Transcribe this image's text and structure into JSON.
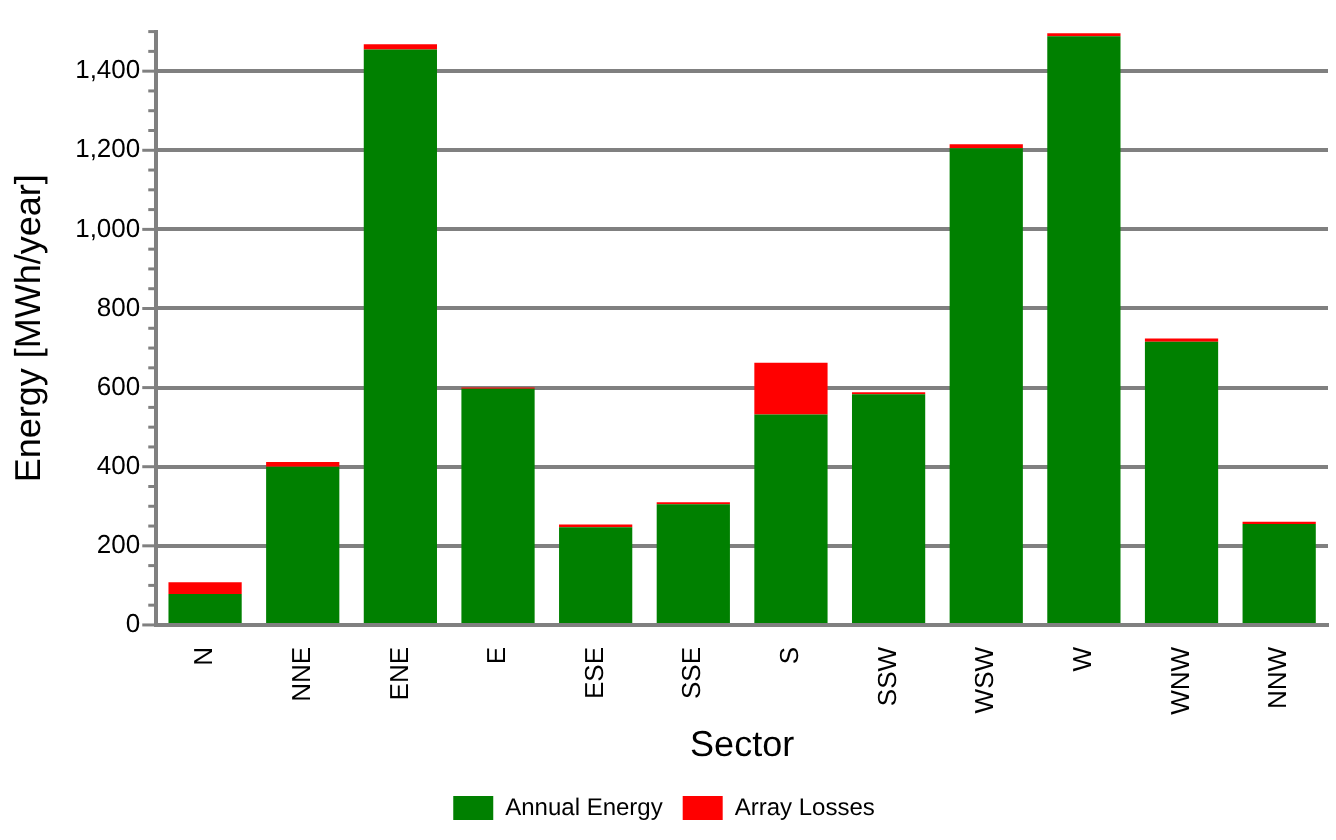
{
  "chart_data": {
    "type": "bar",
    "xlabel": "Sector",
    "ylabel": "Energy [MWh/year]",
    "stacked": true,
    "legend": "bottom",
    "grid": "y",
    "categories": [
      "N",
      "NNE",
      "ENE",
      "E",
      "ESE",
      "SSE",
      "S",
      "SSW",
      "WSW",
      "W",
      "WNW",
      "NNW"
    ],
    "series": [
      {
        "name": "Annual Energy",
        "color": "#008000",
        "values": [
          78,
          400,
          1455,
          597,
          247,
          305,
          532,
          583,
          1205,
          1488,
          716,
          255
        ]
      },
      {
        "name": "Array Losses",
        "color": "#ff0000",
        "values": [
          30,
          12,
          13,
          3,
          7,
          5,
          131,
          5,
          10,
          8,
          8,
          6
        ]
      }
    ],
    "ylim": [
      0,
      1500
    ],
    "yticks": [
      0,
      {
        "value": 50,
        "label": null
      },
      {
        "value": 100,
        "label": null
      },
      {
        "value": 150,
        "label": null
      },
      200,
      {
        "value": 250,
        "label": null
      },
      {
        "value": 300,
        "label": null
      },
      {
        "value": 350,
        "label": null
      },
      400,
      {
        "value": 450,
        "label": null
      },
      {
        "value": 500,
        "label": null
      },
      {
        "value": 550,
        "label": null
      },
      600,
      {
        "value": 650,
        "label": null
      },
      {
        "value": 700,
        "label": null
      },
      {
        "value": 750,
        "label": null
      },
      800,
      {
        "value": 850,
        "label": null
      },
      {
        "value": 900,
        "label": null
      },
      {
        "value": 950,
        "label": null
      },
      {
        "value": 1000,
        "label": "1,000"
      },
      {
        "value": 1050,
        "label": null
      },
      {
        "value": 1100,
        "label": null
      },
      {
        "value": 1150,
        "label": null
      },
      {
        "value": 1200,
        "label": "1,200"
      },
      {
        "value": 1250,
        "label": null
      },
      {
        "value": 1300,
        "label": null
      },
      {
        "value": 1350,
        "label": null
      },
      {
        "value": 1400,
        "label": "1,400"
      },
      {
        "value": 1450,
        "label": null
      },
      {
        "value": 1500,
        "label": null
      }
    ]
  }
}
